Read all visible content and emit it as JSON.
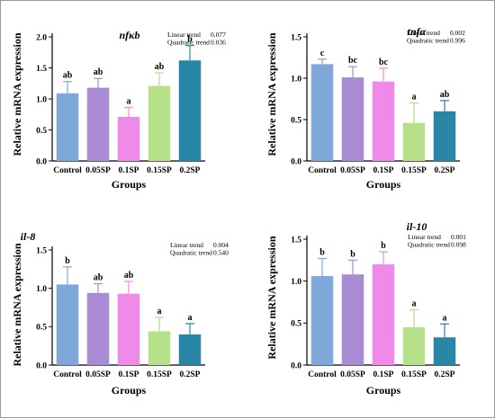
{
  "chart_data": [
    {
      "type": "bar",
      "title": "nfκb",
      "ylabel": "Relative mRNA expression",
      "xlabel": "Groups",
      "categories": [
        "Control",
        "0.05SP",
        "0.1SP",
        "0.15SP",
        "0.2SP"
      ],
      "values": [
        1.09,
        1.18,
        0.71,
        1.21,
        1.62
      ],
      "errors": [
        0.19,
        0.15,
        0.15,
        0.21,
        0.24
      ],
      "significance": [
        "ab",
        "ab",
        "a",
        "ab",
        "b"
      ],
      "colors": [
        "#7fa7d9",
        "#a98bd4",
        "#f08ae8",
        "#b6e08a",
        "#2a86a6"
      ],
      "yticks": [
        "0.0",
        "0.5",
        "1.0",
        "1.5",
        "2.0"
      ],
      "ylim": [
        0,
        2.0
      ],
      "trend": [
        {
          "label": "Linear trend",
          "value": "0.077"
        },
        {
          "label": "Quadratic trend",
          "value": "0.036"
        }
      ]
    },
    {
      "type": "bar",
      "title": "tnfα",
      "ylabel": "Relative mRNA expression",
      "xlabel": "Groups",
      "categories": [
        "Control",
        "0.05SP",
        "0.1SP",
        "0.15SP",
        "0.2SP"
      ],
      "values": [
        1.17,
        1.01,
        0.96,
        0.46,
        0.6
      ],
      "errors": [
        0.06,
        0.13,
        0.16,
        0.24,
        0.13
      ],
      "significance": [
        "c",
        "bc",
        "bc",
        "a",
        "ab"
      ],
      "colors": [
        "#7fa7d9",
        "#a98bd4",
        "#f08ae8",
        "#b6e08a",
        "#2a86a6"
      ],
      "yticks": [
        "0.0",
        "0.5",
        "1.0",
        "1.5"
      ],
      "ylim": [
        0,
        1.5
      ],
      "trend": [
        {
          "label": "Linear trend",
          "value": "0.002"
        },
        {
          "label": "Quadratic trend",
          "value": "0.996"
        }
      ]
    },
    {
      "type": "bar",
      "title": "il-8",
      "ylabel": "Relative mRNA expression",
      "xlabel": "Groups",
      "categories": [
        "Control",
        "0.05SP",
        "0.1SP",
        "0.15SP",
        "0.2SP"
      ],
      "values": [
        1.05,
        0.94,
        0.93,
        0.44,
        0.4
      ],
      "errors": [
        0.23,
        0.12,
        0.16,
        0.18,
        0.14
      ],
      "significance": [
        "b",
        "ab",
        "ab",
        "a",
        "a"
      ],
      "colors": [
        "#7fa7d9",
        "#a98bd4",
        "#f08ae8",
        "#b6e08a",
        "#2a86a6"
      ],
      "yticks": [
        "0.0",
        "0.5",
        "1.0",
        "1.5"
      ],
      "ylim": [
        0,
        1.5
      ],
      "trend": [
        {
          "label": "Linear trend",
          "value": "0.004"
        },
        {
          "label": "Quadratic trend",
          "value": "0.540"
        }
      ]
    },
    {
      "type": "bar",
      "title": "il-10",
      "ylabel": "Relative mRNA expression",
      "xlabel": "Groups",
      "categories": [
        "Control",
        "0.05SP",
        "0.1SP",
        "0.15SP",
        "0.2SP"
      ],
      "values": [
        1.06,
        1.08,
        1.2,
        0.45,
        0.33
      ],
      "errors": [
        0.21,
        0.17,
        0.15,
        0.21,
        0.16
      ],
      "significance": [
        "b",
        "b",
        "b",
        "a",
        "a"
      ],
      "colors": [
        "#7fa7d9",
        "#a98bd4",
        "#f08ae8",
        "#b6e08a",
        "#2a86a6"
      ],
      "yticks": [
        "0.0",
        "0.5",
        "1.0",
        "1.5"
      ],
      "ylim": [
        0,
        1.5
      ],
      "trend": [
        {
          "label": "Linear trend",
          "value": "0.001"
        },
        {
          "label": "Quadratic trend",
          "value": "0.098"
        }
      ]
    }
  ]
}
